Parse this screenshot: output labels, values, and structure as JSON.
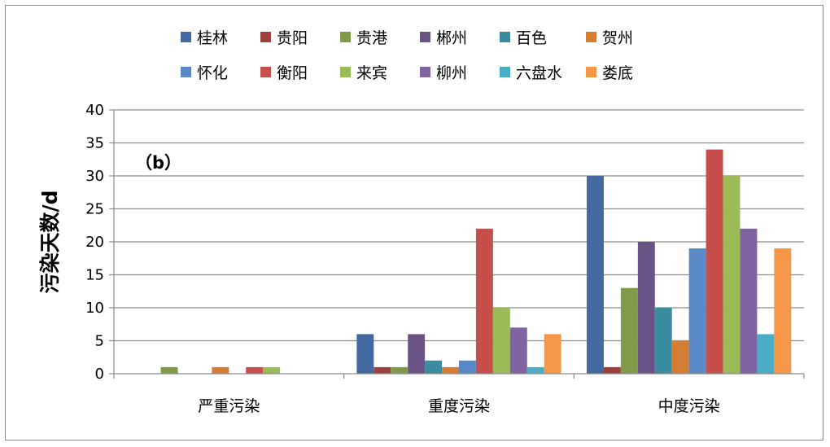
{
  "chart_data": {
    "type": "bar",
    "annotation": "（b）",
    "ylabel": "污染天数/d",
    "xlabel": "",
    "ylim": [
      0,
      40
    ],
    "yticks": [
      0,
      5,
      10,
      15,
      20,
      25,
      30,
      35,
      40
    ],
    "grid": true,
    "legend_position": "top",
    "categories": [
      "严重污染",
      "重度污染",
      "中度污染"
    ],
    "series": [
      {
        "name": "桂林",
        "color": "#4369A0",
        "values": [
          0,
          6,
          30
        ]
      },
      {
        "name": "贵阳",
        "color": "#A0403C",
        "values": [
          0,
          1,
          1
        ]
      },
      {
        "name": "贵港",
        "color": "#809A47",
        "values": [
          1,
          1,
          13
        ]
      },
      {
        "name": "郴州",
        "color": "#6B5287",
        "values": [
          0,
          6,
          20
        ]
      },
      {
        "name": "百色",
        "color": "#3A8DA0",
        "values": [
          0,
          2,
          10
        ]
      },
      {
        "name": "贺州",
        "color": "#D47D33",
        "values": [
          1,
          1,
          5
        ]
      },
      {
        "name": "怀化",
        "color": "#5A89C8",
        "values": [
          0,
          2,
          19
        ]
      },
      {
        "name": "衡阳",
        "color": "#C64F4C",
        "values": [
          1,
          22,
          34
        ]
      },
      {
        "name": "来宾",
        "color": "#9BBB59",
        "values": [
          1,
          10,
          30
        ]
      },
      {
        "name": "柳州",
        "color": "#8064A2",
        "values": [
          0,
          7,
          22
        ]
      },
      {
        "name": "六盘水",
        "color": "#4BACC6",
        "values": [
          0,
          1,
          6
        ]
      },
      {
        "name": "娄底",
        "color": "#F79646",
        "values": [
          0,
          6,
          19
        ]
      }
    ]
  }
}
